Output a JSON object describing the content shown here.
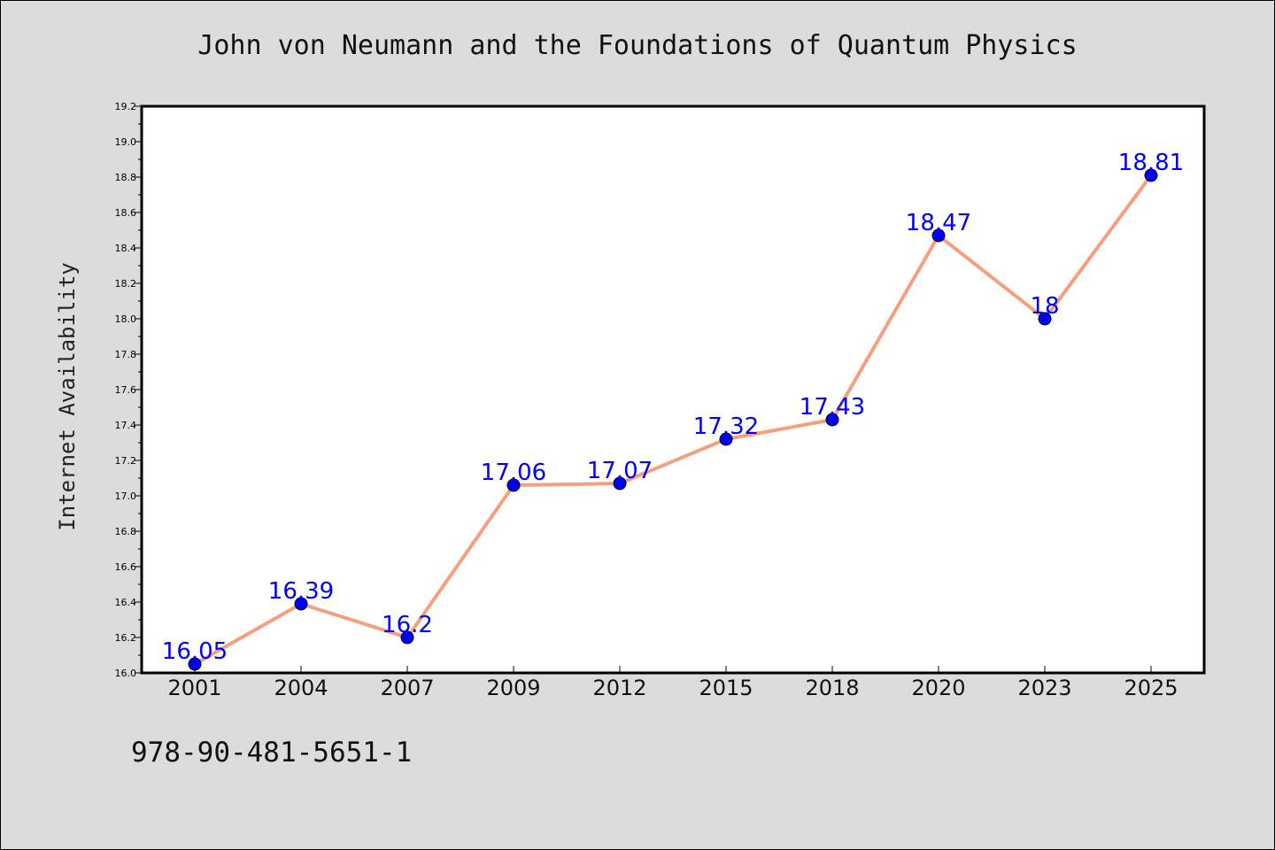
{
  "chart_data": {
    "type": "line",
    "title": "John von Neumann and the Foundations of Quantum Physics",
    "xlabel": "",
    "ylabel": "Internet Availability",
    "categories": [
      "2001",
      "2004",
      "2007",
      "2009",
      "2012",
      "2015",
      "2018",
      "2020",
      "2023",
      "2025"
    ],
    "series": [
      {
        "values": [
          16.05,
          16.39,
          16.2,
          17.06,
          17.07,
          17.32,
          17.43,
          18.47,
          18.0,
          18.81
        ],
        "data_labels": [
          "16.05",
          "16.39",
          "16.2",
          "17.06",
          "17.07",
          "17.32",
          "17.43",
          "18.47",
          "18",
          "18.81"
        ],
        "line_color": "#f4a07e",
        "marker_color": "#0000ff"
      }
    ],
    "ylim": [
      16.0,
      19.2
    ],
    "yticks": [
      "16.0",
      "16.2",
      "16.4",
      "16.6",
      "16.8",
      "17.0",
      "17.2",
      "17.4",
      "17.6",
      "17.8",
      "18.0",
      "18.2",
      "18.4",
      "18.6",
      "18.8",
      "19.0",
      "19.2"
    ],
    "grid": false,
    "legend": "none"
  },
  "footer": {
    "isbn": "978-90-481-5651-1"
  },
  "colors": {
    "background": "#dcdcdc",
    "plot_background": "#ffffff",
    "line": "#f4a07e",
    "marker": "#0000ff",
    "data_label": "#0000ff"
  }
}
